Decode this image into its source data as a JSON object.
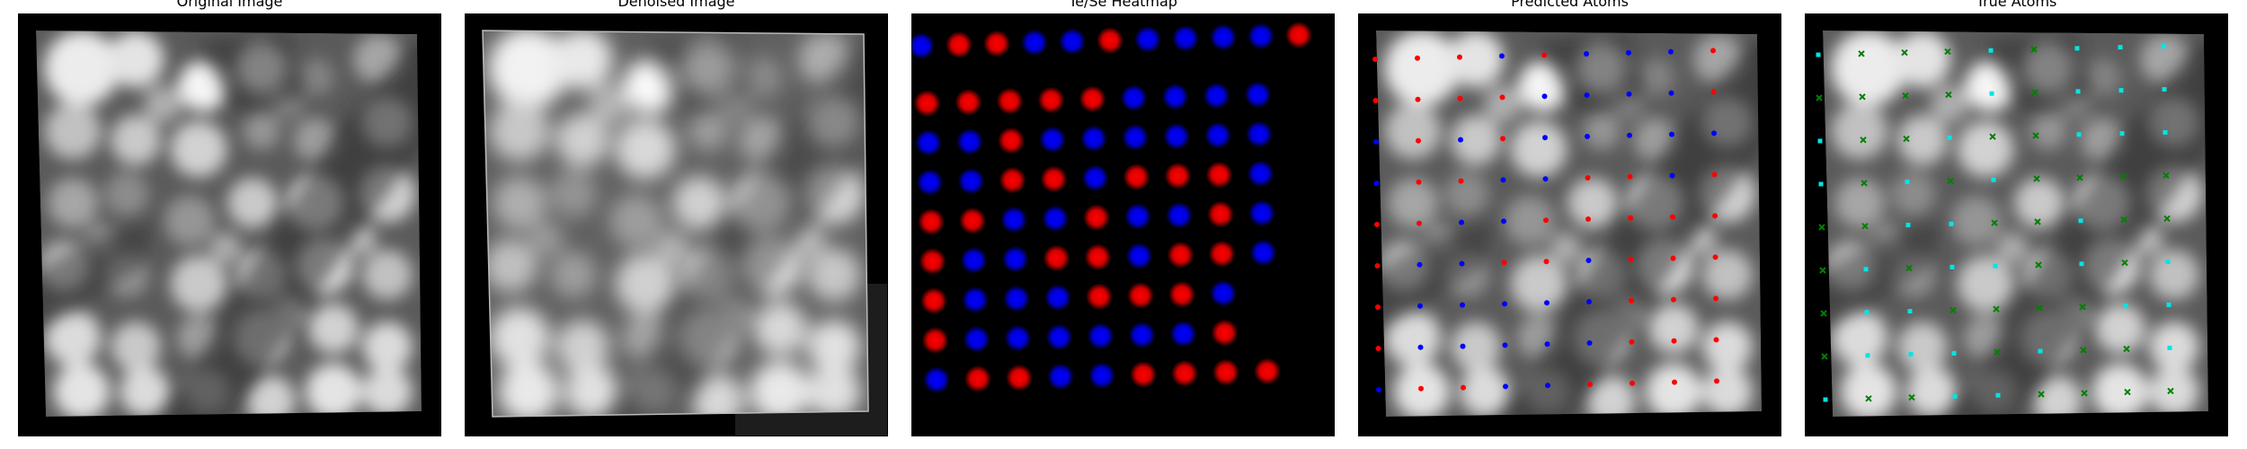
{
  "panels": [
    {
      "id": "original",
      "title": "Original Image"
    },
    {
      "id": "denoised",
      "title": "Denoised Image"
    },
    {
      "id": "heatmap",
      "title": "Te/Se Heatmap"
    },
    {
      "id": "predicted",
      "title": "Predicted Atoms"
    },
    {
      "id": "true",
      "title": "True Atoms"
    }
  ],
  "colors": {
    "te": "#ff0000",
    "se": "#0000ff",
    "true_te": "#00e5e5",
    "true_se": "#008000",
    "frame_bg": "#000000"
  },
  "heatmap_rows": [
    "BRRBBRBBBBR",
    "RRRRRBBBB",
    "BBRBBBBBB",
    "BBRRBRRRB",
    "RRBBRBBRB",
    "RBBRRBRRB",
    "RBBBRRRB",
    "RBBBBBBR",
    "BRRBBRRRR"
  ],
  "predicted_rows": [
    "RRRBRBBBR",
    "RRRRBBBBR",
    "BRBRBBBBB",
    "BRRBBRRBR",
    "RRBBRRRRR",
    "RBBRRBRRR",
    "RBBBBBRRR",
    "RBBBBBRRR",
    "BRRBBRRRR"
  ],
  "true_rows": [
    "CGGGCGCCC",
    "GGGGCGCCC",
    "CGGCGGCCC",
    "CGCGCGGGG",
    "GGCCGGCGG",
    "GCGCCGCGC",
    "GCCGGGGCC",
    "GCCCGCGGC",
    "CGGCCGGGG"
  ]
}
